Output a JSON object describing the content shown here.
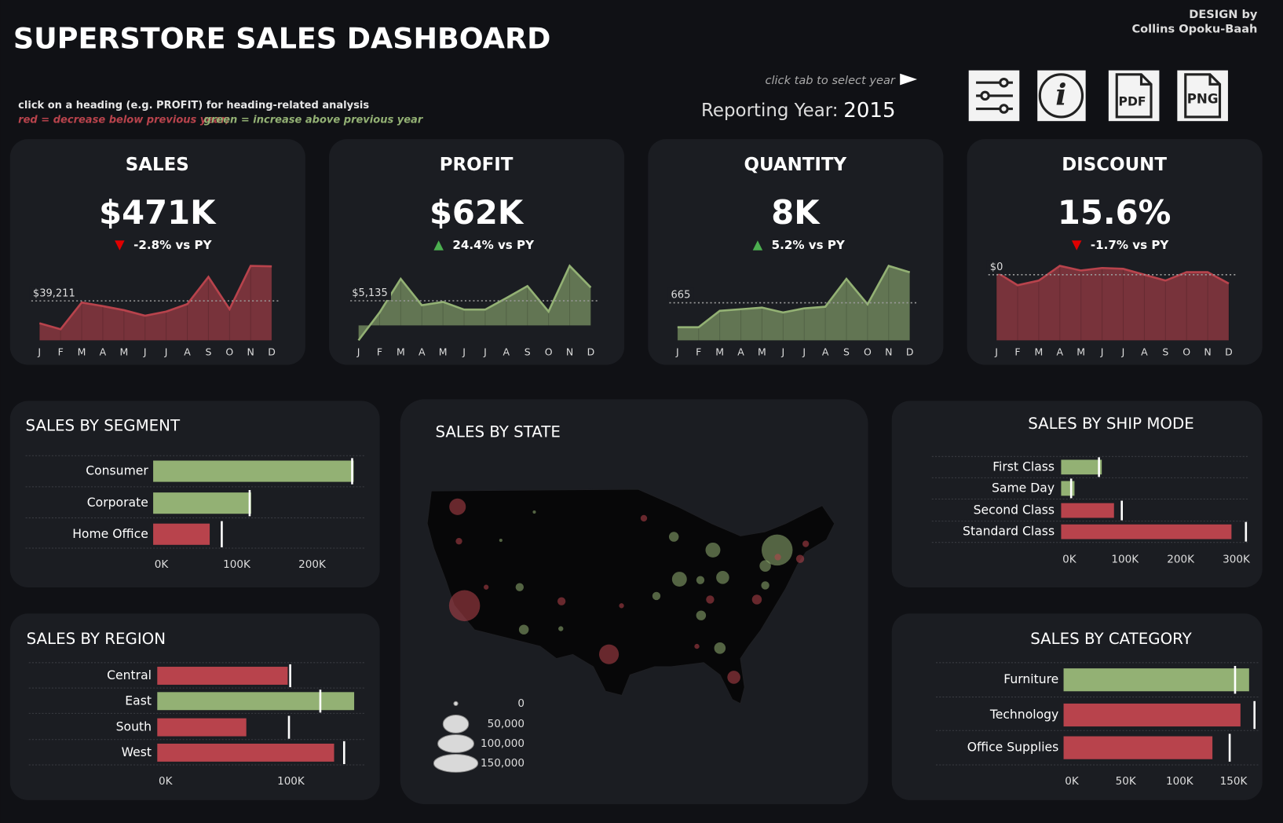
{
  "header": {
    "title": "SUPERSTORE SALES DASHBOARD",
    "credit_line1": "DESIGN by",
    "credit_line2": "Collins Opoku-Baah",
    "hint": "click on a heading (e.g. PROFIT) for heading-related analysis",
    "legend_red": "red = decrease below previous year;",
    "legend_green": "green = increase above previous year",
    "year_hint": "click tab to select year",
    "year_label": "Reporting Year:",
    "year": 2015,
    "icons": [
      "i",
      "PDF",
      "PNG"
    ]
  },
  "increase_color": "#93b174",
  "decrease_color": "#b8434c",
  "chart_data": [
    {
      "type": "area",
      "title": "SALES",
      "value_text": "$471K",
      "change": "-2.8% vs PY",
      "trend": "down",
      "categories": [
        "J",
        "F",
        "M",
        "A",
        "M",
        "J",
        "J",
        "A",
        "S",
        "O",
        "N",
        "D"
      ],
      "values": [
        17000,
        11000,
        37600,
        34000,
        30000,
        24500,
        28600,
        36000,
        63000,
        31000,
        74000,
        73500
      ],
      "reference": {
        "value": 39211,
        "label": "$39,211"
      }
    },
    {
      "type": "area",
      "title": "PROFIT",
      "value_text": "$62K",
      "change": "24.4% vs PY",
      "trend": "up",
      "categories": [
        "J",
        "F",
        "M",
        "A",
        "M",
        "J",
        "J",
        "A",
        "S",
        "O",
        "N",
        "D"
      ],
      "values": [
        -3100,
        2700,
        9700,
        4200,
        4900,
        3300,
        3300,
        5700,
        8200,
        2900,
        12400,
        7900
      ],
      "reference": {
        "value": 5135,
        "label": "$5,135"
      }
    },
    {
      "type": "area",
      "title": "QUANTITY",
      "value_text": "8K",
      "change": "5.2% vs PY",
      "trend": "up",
      "categories": [
        "J",
        "F",
        "M",
        "A",
        "M",
        "J",
        "J",
        "A",
        "S",
        "O",
        "N",
        "D"
      ],
      "values": [
        232,
        232,
        522,
        551,
        580,
        493,
        566,
        595,
        1088,
        638,
        1318,
        1204
      ],
      "reference": {
        "value": 665,
        "label": "665"
      }
    },
    {
      "type": "area",
      "title": "DISCOUNT",
      "value_text": "15.6%",
      "change": "-1.7% vs PY",
      "trend": "down",
      "categories": [
        "J",
        "F",
        "M",
        "A",
        "M",
        "J",
        "J",
        "A",
        "S",
        "O",
        "N",
        "D"
      ],
      "values": [
        0.162,
        0.131,
        0.142,
        0.177,
        0.166,
        0.172,
        0.17,
        0.156,
        0.142,
        0.162,
        0.162,
        0.135
      ],
      "reference": {
        "value": 0.156,
        "label": "$0"
      }
    },
    {
      "type": "hbar",
      "title": "SALES BY SEGMENT",
      "categories": [
        "Consumer",
        "Corporate",
        "Home Office"
      ],
      "values": [
        266000,
        130000,
        75000
      ],
      "previous_values": [
        264000,
        128000,
        91000
      ],
      "xlim": [
        0,
        280000
      ],
      "xticks": [
        {
          "value": 0,
          "label": "0K"
        },
        {
          "value": 100000,
          "label": "100K"
        },
        {
          "value": 200000,
          "label": "200K"
        }
      ]
    },
    {
      "type": "bubble_map",
      "title": "SALES BY STATE",
      "points": [
        {
          "lon": -121.0,
          "lat": 47.2,
          "value": 21000,
          "trend": "down"
        },
        {
          "lon": -120.8,
          "lat": 43.3,
          "value": 3300,
          "trend": "down"
        },
        {
          "lon": -120.0,
          "lat": 36.0,
          "value": 74000,
          "trend": "down"
        },
        {
          "lon": -116.9,
          "lat": 38.1,
          "value": 1900,
          "trend": "down"
        },
        {
          "lon": -111.5,
          "lat": 33.3,
          "value": 7400,
          "trend": "up"
        },
        {
          "lon": -112.1,
          "lat": 38.1,
          "value": 5100,
          "trend": "up"
        },
        {
          "lon": -106.1,
          "lat": 36.5,
          "value": 5100,
          "trend": "down"
        },
        {
          "lon": -106.2,
          "lat": 33.4,
          "value": 1900,
          "trend": "up"
        },
        {
          "lon": -99.3,
          "lat": 30.5,
          "value": 30000,
          "trend": "down"
        },
        {
          "lon": -97.5,
          "lat": 36.0,
          "value": 1900,
          "trend": "down"
        },
        {
          "lon": -94.3,
          "lat": 45.9,
          "value": 3300,
          "trend": "down"
        },
        {
          "lon": -90.0,
          "lat": 43.8,
          "value": 7400,
          "trend": "up"
        },
        {
          "lon": -89.2,
          "lat": 39.0,
          "value": 17000,
          "trend": "up"
        },
        {
          "lon": -84.4,
          "lat": 42.3,
          "value": 17000,
          "trend": "up"
        },
        {
          "lon": -83.0,
          "lat": 39.2,
          "value": 13000,
          "trend": "up"
        },
        {
          "lon": -86.2,
          "lat": 38.9,
          "value": 5100,
          "trend": "up"
        },
        {
          "lon": -84.8,
          "lat": 36.7,
          "value": 5100,
          "trend": "down"
        },
        {
          "lon": -86.1,
          "lat": 34.9,
          "value": 7400,
          "trend": "up"
        },
        {
          "lon": -83.4,
          "lat": 31.2,
          "value": 10000,
          "trend": "up"
        },
        {
          "lon": -81.4,
          "lat": 27.9,
          "value": 13000,
          "trend": "down"
        },
        {
          "lon": -78.1,
          "lat": 36.7,
          "value": 7400,
          "trend": "down"
        },
        {
          "lon": -76.9,
          "lat": 38.3,
          "value": 5100,
          "trend": "up"
        },
        {
          "lon": -76.9,
          "lat": 40.5,
          "value": 10000,
          "trend": "up"
        },
        {
          "lon": -75.2,
          "lat": 42.3,
          "value": 74000,
          "trend": "up"
        },
        {
          "lon": -75.1,
          "lat": 41.5,
          "value": 3300,
          "trend": "down"
        },
        {
          "lon": -71.1,
          "lat": 43.0,
          "value": 3300,
          "trend": "down"
        },
        {
          "lon": -71.9,
          "lat": 41.3,
          "value": 5100,
          "trend": "down"
        },
        {
          "lon": -86.7,
          "lat": 31.4,
          "value": 1900,
          "trend": "down"
        },
        {
          "lon": -92.5,
          "lat": 37.1,
          "value": 5100,
          "trend": "up"
        },
        {
          "lon": -114.8,
          "lat": 43.4,
          "value": 800,
          "trend": "up"
        },
        {
          "lon": -110.0,
          "lat": 46.6,
          "value": 800,
          "trend": "up"
        }
      ],
      "size_legend": [
        0,
        {
          "value": 50000,
          "label": "50,000"
        },
        {
          "value": 100000,
          "label": "100,000"
        },
        {
          "value": 150000,
          "label": "150,000"
        }
      ]
    },
    {
      "type": "hbar",
      "title": "SALES BY SHIP MODE",
      "categories": [
        "First Class",
        "Same Day",
        "Second Class",
        "Standard Class"
      ],
      "values": [
        73000,
        24000,
        95000,
        306000
      ],
      "previous_values": [
        68000,
        18000,
        109000,
        332000
      ],
      "xlim": [
        0,
        335000
      ],
      "xticks": [
        {
          "value": 0,
          "label": "0K"
        },
        {
          "value": 100000,
          "label": "100K"
        },
        {
          "value": 200000,
          "label": "200K"
        },
        {
          "value": 300000,
          "label": "300K"
        }
      ]
    },
    {
      "type": "hbar",
      "title": "SALES BY REGION",
      "categories": [
        "Central",
        "East",
        "South",
        "West"
      ],
      "values": [
        104000,
        157000,
        71000,
        141000
      ],
      "previous_values": [
        106000,
        130000,
        105000,
        149000
      ],
      "xlim": [
        0,
        165000
      ],
      "xticks": [
        {
          "value": 0,
          "label": "0K"
        },
        {
          "value": 100000,
          "label": "100K"
        }
      ]
    },
    {
      "type": "hbar",
      "title": "SALES BY CATEGORY",
      "categories": [
        "Furniture",
        "Technology",
        "Office Supplies"
      ],
      "values": [
        172000,
        164000,
        138000
      ],
      "previous_values": [
        159000,
        177000,
        154000
      ],
      "xlim": [
        0,
        182000
      ],
      "xticks": [
        {
          "value": 0,
          "label": "0K"
        },
        {
          "value": 50000,
          "label": "50K"
        },
        {
          "value": 100000,
          "label": "100K"
        },
        {
          "value": 150000,
          "label": "150K"
        }
      ]
    }
  ]
}
